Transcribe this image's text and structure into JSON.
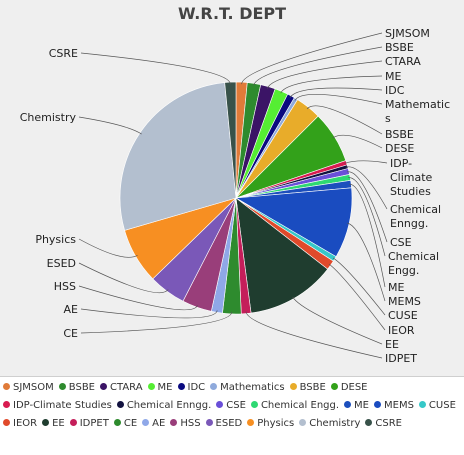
{
  "chart_data": {
    "type": "pie",
    "title": "W.R.T. DEPT",
    "slices": [
      {
        "name": "SJMSOM",
        "value": 1.5,
        "color": "#e07b39"
      },
      {
        "name": "BSBE",
        "value": 1.8,
        "color": "#2e8b2e"
      },
      {
        "name": "CTARA",
        "value": 2.0,
        "color": "#3b1466"
      },
      {
        "name": "ME",
        "value": 1.8,
        "color": "#55ee33"
      },
      {
        "name": "IDC",
        "value": 1.0,
        "color": "#0a0a80"
      },
      {
        "name": "Mathematics",
        "value": 0.5,
        "color": "#8faadc"
      },
      {
        "name": "BSBE",
        "value": 3.5,
        "color": "#e8ac2a"
      },
      {
        "name": "DESE",
        "value": 7.0,
        "color": "#33a11a"
      },
      {
        "name": "IDP-Climate Studies",
        "value": 0.6,
        "color": "#d81b50"
      },
      {
        "name": "Chemical Enngg.",
        "value": 0.5,
        "color": "#121240"
      },
      {
        "name": "CSE",
        "value": 0.8,
        "color": "#6a4fd8"
      },
      {
        "name": "Chemical Engg.",
        "value": 0.8,
        "color": "#2ed872"
      },
      {
        "name": "ME",
        "value": 1.0,
        "color": "#1c4fbd"
      },
      {
        "name": "MEMS",
        "value": 9.5,
        "color": "#1a4cc0"
      },
      {
        "name": "CUSE",
        "value": 0.7,
        "color": "#36c8c8"
      },
      {
        "name": "IEOR",
        "value": 1.3,
        "color": "#e04a2b"
      },
      {
        "name": "EE",
        "value": 12.0,
        "color": "#1f3d2f"
      },
      {
        "name": "IDPET",
        "value": 1.3,
        "color": "#c41e5a"
      },
      {
        "name": "CE",
        "value": 2.5,
        "color": "#2e8b2e"
      },
      {
        "name": "AE",
        "value": 1.5,
        "color": "#8fa8e8"
      },
      {
        "name": "HSS",
        "value": 4.0,
        "color": "#993e7a"
      },
      {
        "name": "ESED",
        "value": 5.0,
        "color": "#7a58b8"
      },
      {
        "name": "Physics",
        "value": 7.5,
        "color": "#f78f22"
      },
      {
        "name": "Chemistry",
        "value": 27.0,
        "color": "#b3bfcf"
      },
      {
        "name": "CSRE",
        "value": 1.5,
        "color": "#38524a"
      }
    ],
    "legend_placement": "bottom"
  }
}
